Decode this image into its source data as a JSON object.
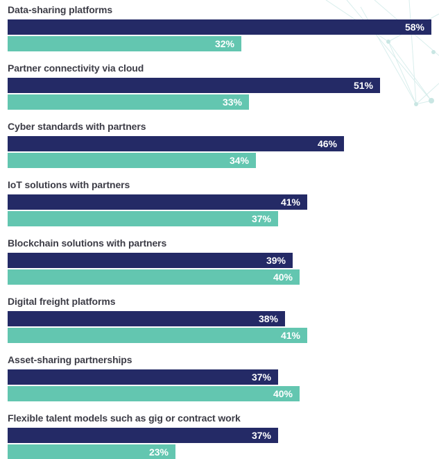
{
  "chart_data": {
    "type": "bar",
    "orientation": "horizontal",
    "categories": [
      "Data-sharing platforms",
      "Partner connectivity via cloud",
      "Cyber standards with partners",
      "IoT solutions with partners",
      "Blockchain solutions with partners",
      "Digital freight platforms",
      "Asset-sharing partnerships",
      "Flexible talent models such as gig or contract work"
    ],
    "series": [
      {
        "color": "#242a66",
        "values": [
          58,
          51,
          46,
          41,
          39,
          38,
          37,
          37
        ],
        "labels": [
          "58%",
          "51%",
          "46%",
          "41%",
          "39%",
          "38%",
          "37%",
          "37%"
        ]
      },
      {
        "color": "#63c6b0",
        "values": [
          32,
          33,
          34,
          37,
          40,
          41,
          40,
          23
        ],
        "labels": [
          "32%",
          "33%",
          "34%",
          "37%",
          "40%",
          "41%",
          "40%",
          "23%"
        ]
      }
    ],
    "xlim": [
      0,
      58
    ],
    "grid": false,
    "legend": "none"
  }
}
